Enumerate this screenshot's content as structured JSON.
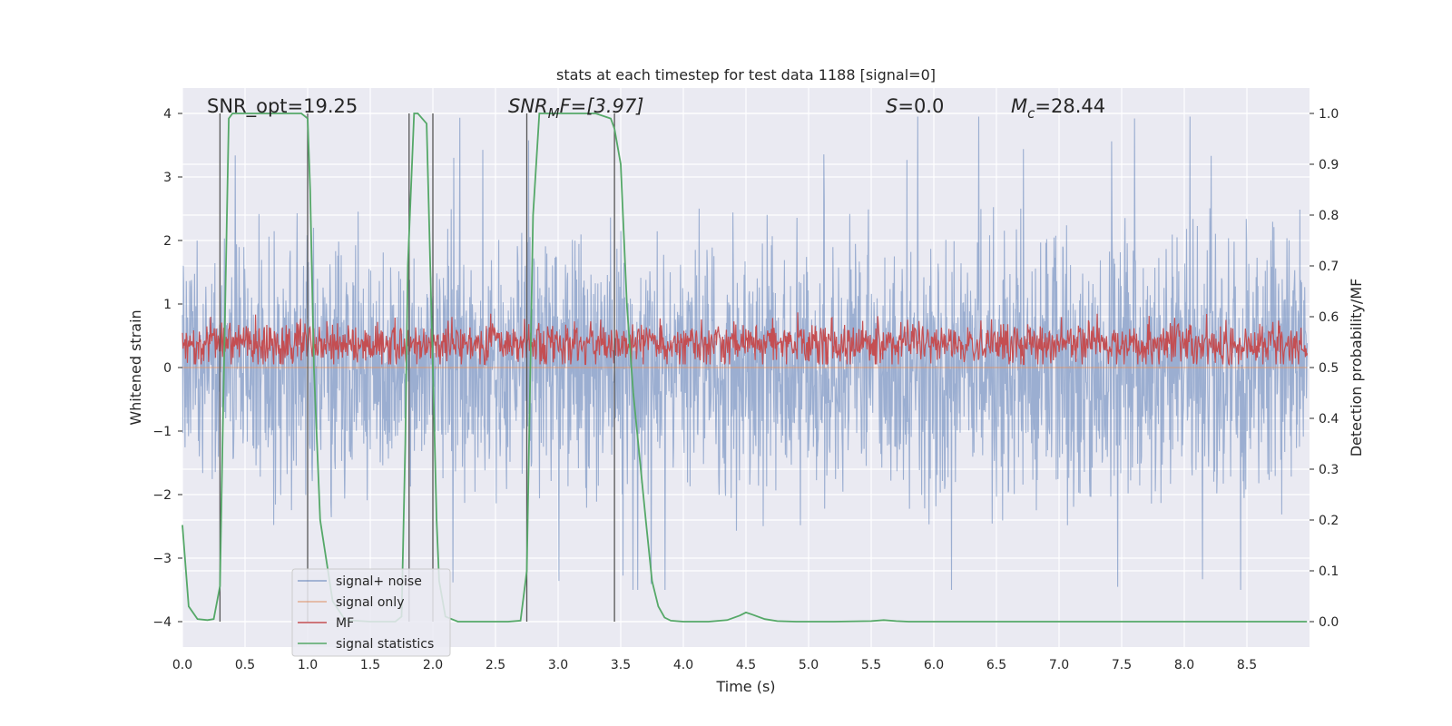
{
  "chart_data": {
    "type": "line",
    "title": "stats at each timestep for test data 1188 [signal=0]",
    "xlabel": "Time (s)",
    "ylabel": "Whitened strain",
    "y2label": "Detection probability/MF",
    "xlim": [
      0.0,
      9.0
    ],
    "ylim": [
      -4.4,
      4.4
    ],
    "y2lim": [
      -0.05,
      1.05
    ],
    "x_ticks": [
      "0.0",
      "0.5",
      "1.0",
      "1.5",
      "2.0",
      "2.5",
      "3.0",
      "3.5",
      "4.0",
      "4.5",
      "5.0",
      "5.5",
      "6.0",
      "6.5",
      "7.0",
      "7.5",
      "8.0",
      "8.5"
    ],
    "x_tick_values": [
      0.0,
      0.5,
      1.0,
      1.5,
      2.0,
      2.5,
      3.0,
      3.5,
      4.0,
      4.5,
      5.0,
      5.5,
      6.0,
      6.5,
      7.0,
      7.5,
      8.0,
      8.5
    ],
    "y_ticks": [
      "4",
      "3",
      "2",
      "1",
      "0",
      "−1",
      "−2",
      "−3",
      "−4"
    ],
    "y_tick_values": [
      4,
      3,
      2,
      1,
      0,
      -1,
      -2,
      -3,
      -4
    ],
    "y2_ticks": [
      "1.0",
      "0.9",
      "0.8",
      "0.7",
      "0.6",
      "0.5",
      "0.4",
      "0.3",
      "0.2",
      "0.1",
      "0.0"
    ],
    "y2_tick_values": [
      1.0,
      0.9,
      0.8,
      0.7,
      0.6,
      0.5,
      0.4,
      0.3,
      0.2,
      0.1,
      0.0
    ],
    "grid": true,
    "legend_position": "lower-left",
    "annotations": {
      "snr_opt": "SNR_opt=19.25",
      "snr_mf_base": "SNR",
      "snr_mf_sub": "M",
      "snr_mf_rest": "F=[3.97]",
      "s_label": "S",
      "s_value": "=0.0",
      "mc_label": "M",
      "mc_sub": "c",
      "mc_value": "=28.44"
    },
    "vertical_lines_x": [
      0.3,
      1.0,
      1.81,
      2.0,
      2.75,
      3.45
    ],
    "series": [
      {
        "name": "signal+ noise",
        "axis": "left",
        "color": "#4c72b0",
        "description": "whitened noise, roughly uniform amplitude across 0-9 s",
        "envelope": {
          "core_low": -1.6,
          "core_high": 1.55,
          "peak_low": -3.5,
          "peak_high": 3.95
        }
      },
      {
        "name": "signal only",
        "axis": "left",
        "color": "#dd8452",
        "values_constant": 0
      },
      {
        "name": "MF",
        "axis": "left",
        "color": "#c44e52",
        "description": "matched filter output, fluctuating between about 0.05 and 0.95",
        "envelope": {
          "low": 0.05,
          "high": 0.95
        }
      },
      {
        "name": "signal statistics",
        "axis": "right",
        "color": "#55a868",
        "x": [
          0.0,
          0.05,
          0.12,
          0.2,
          0.25,
          0.3,
          0.32,
          0.37,
          0.4,
          0.5,
          0.7,
          0.95,
          1.0,
          1.02,
          1.05,
          1.1,
          1.2,
          1.3,
          1.5,
          1.7,
          1.75,
          1.78,
          1.8,
          1.85,
          1.88,
          1.95,
          2.0,
          2.03,
          2.05,
          2.1,
          2.2,
          2.4,
          2.6,
          2.7,
          2.75,
          2.8,
          2.85,
          3.0,
          3.3,
          3.42,
          3.45,
          3.5,
          3.55,
          3.6,
          3.7,
          3.75,
          3.8,
          3.85,
          3.9,
          4.0,
          4.2,
          4.35,
          4.45,
          4.5,
          4.55,
          4.65,
          4.75,
          4.9,
          5.2,
          5.5,
          5.6,
          5.7,
          5.8,
          6.0,
          8.98
        ],
        "values": [
          0.19,
          0.03,
          0.005,
          0.003,
          0.005,
          0.07,
          0.35,
          0.99,
          1.0,
          1.0,
          1.0,
          1.0,
          0.99,
          0.85,
          0.5,
          0.2,
          0.04,
          0.003,
          0.0,
          0.0,
          0.01,
          0.35,
          0.7,
          1.0,
          1.0,
          0.98,
          0.5,
          0.2,
          0.08,
          0.01,
          0.0,
          0.0,
          0.0,
          0.002,
          0.1,
          0.8,
          1.0,
          1.0,
          1.0,
          0.99,
          0.97,
          0.9,
          0.62,
          0.45,
          0.2,
          0.08,
          0.03,
          0.008,
          0.002,
          0.0,
          0.0,
          0.003,
          0.012,
          0.018,
          0.014,
          0.005,
          0.001,
          0.0,
          0.0,
          0.001,
          0.003,
          0.001,
          0.0,
          0.0,
          0.0
        ]
      }
    ]
  }
}
